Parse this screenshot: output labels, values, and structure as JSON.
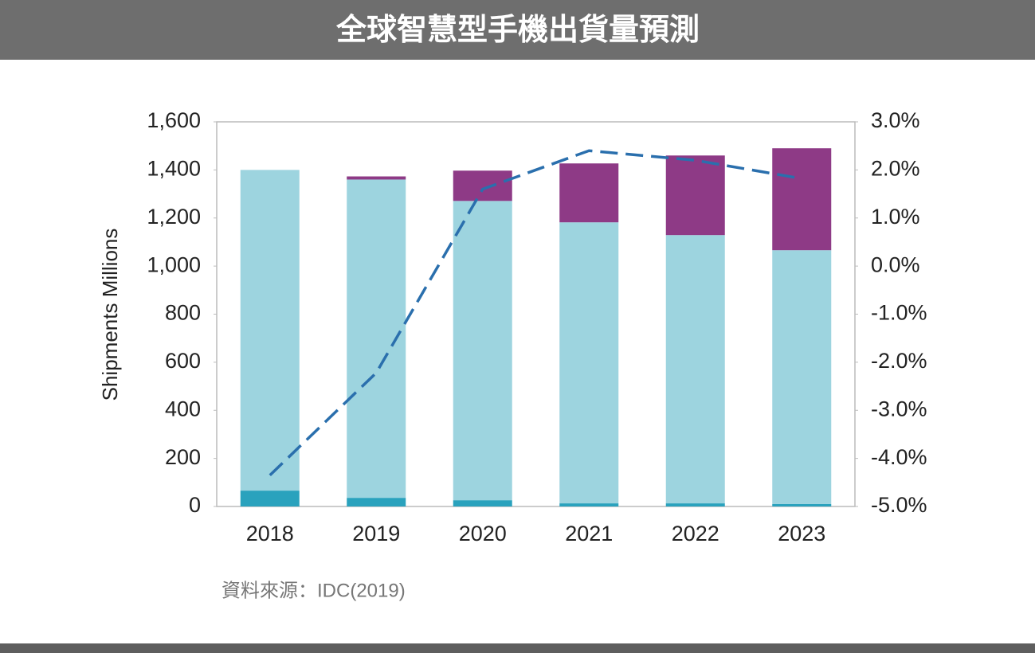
{
  "chart_data": {
    "type": "bar",
    "stacked": true,
    "title": "全球智慧型手機出貨量預測",
    "y_label": "Shipments Millions",
    "source": "資料來源：IDC(2019)",
    "categories": [
      "2018",
      "2019",
      "2020",
      "2021",
      "2022",
      "2023"
    ],
    "series": [
      {
        "color": "#2aa2bd",
        "values": [
          66,
          36,
          26,
          13,
          13,
          10
        ]
      },
      {
        "color": "#9dd4df",
        "values": [
          1334,
          1324,
          1245,
          1169,
          1116,
          1056
        ]
      },
      {
        "color": "#8e3a86",
        "values": [
          0,
          13,
          126,
          245,
          331,
          424
        ]
      },
      {
        "type": "line",
        "axis": "y2",
        "color": "#2a6fad",
        "dashed": true,
        "values": [
          -4.35,
          -2.22,
          1.6,
          2.4,
          2.2,
          1.82
        ]
      }
    ],
    "ylim": [
      0,
      1600
    ],
    "yticks": [
      0,
      200,
      400,
      600,
      800,
      {
        "value": 1000,
        "label": "1,000"
      },
      {
        "value": 1200,
        "label": "1,200"
      },
      {
        "value": 1400,
        "label": "1,400"
      },
      {
        "value": 1600,
        "label": "1,600"
      }
    ],
    "y2lim": [
      -5,
      3
    ],
    "y2ticks": [
      {
        "value": -5,
        "label": "-5.0%"
      },
      {
        "value": -4,
        "label": "-4.0%"
      },
      {
        "value": -3,
        "label": "-3.0%"
      },
      {
        "value": -2,
        "label": "-2.0%"
      },
      {
        "value": -1,
        "label": "-1.0%"
      },
      {
        "value": 0,
        "label": "0.0%"
      },
      {
        "value": 1,
        "label": "1.0%"
      },
      {
        "value": 2,
        "label": "2.0%"
      },
      {
        "value": 3,
        "label": "3.0%"
      }
    ],
    "grid": false
  }
}
